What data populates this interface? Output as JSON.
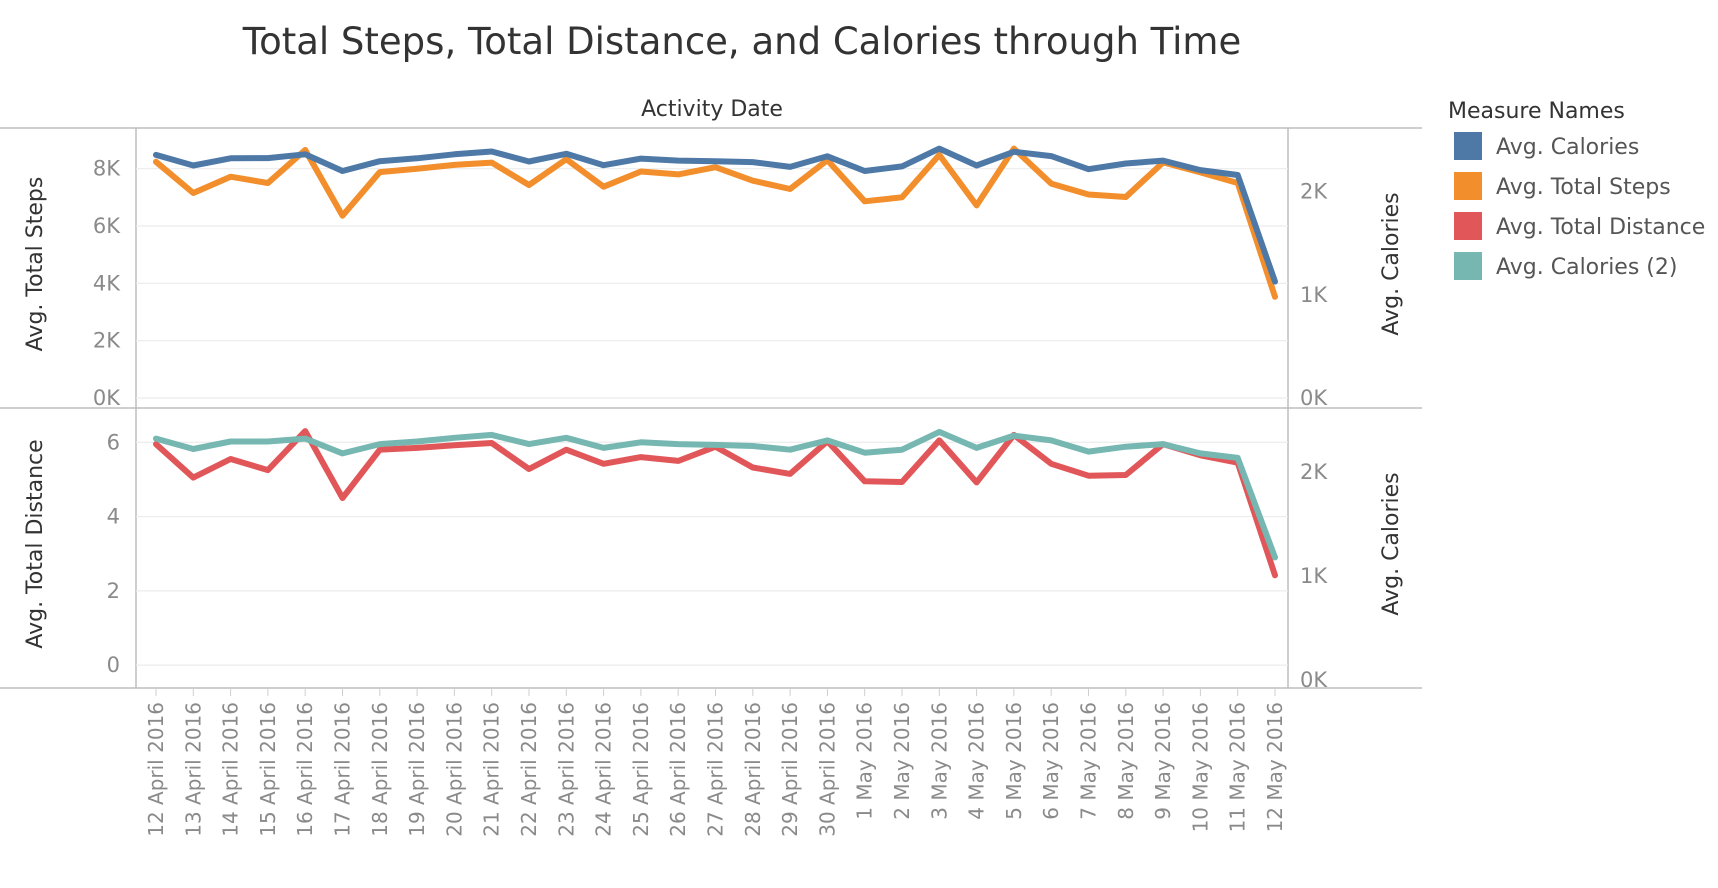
{
  "chart_data": {
    "type": "line",
    "title": "Total Steps, Total Distance, and Calories through Time",
    "column_header": "Activity Date",
    "categories": [
      "12 April 2016",
      "13 April 2016",
      "14 April 2016",
      "15 April 2016",
      "16 April 2016",
      "17 April 2016",
      "18 April 2016",
      "19 April 2016",
      "20 April 2016",
      "21 April 2016",
      "22 April 2016",
      "23 April 2016",
      "24 April 2016",
      "25 April 2016",
      "26 April 2016",
      "27 April 2016",
      "28 April 2016",
      "29 April 2016",
      "30 April 2016",
      "1 May 2016",
      "2 May 2016",
      "3 May 2016",
      "4 May 2016",
      "5 May 2016",
      "6 May 2016",
      "7 May 2016",
      "8 May 2016",
      "9 May 2016",
      "10 May 2016",
      "11 May 2016",
      "12 May 2016"
    ],
    "legend": {
      "title": "Measure Names",
      "position": "right",
      "items": [
        {
          "label": "Avg. Calories",
          "color": "#4e79a7"
        },
        {
          "label": "Avg. Total Steps",
          "color": "#f28e2b"
        },
        {
          "label": "Avg. Total Distance",
          "color": "#e15759"
        },
        {
          "label": "Avg. Calories (2)",
          "color": "#76b7b2"
        }
      ]
    },
    "panels": [
      {
        "left_axis": {
          "label": "Avg. Total Steps",
          "ylim": [
            0,
            9000
          ],
          "ticks": [
            0,
            2000,
            4000,
            6000,
            8000
          ],
          "tick_labels": [
            "0K",
            "2K",
            "4K",
            "6K",
            "8K"
          ]
        },
        "right_axis": {
          "label": "Avg. Calories",
          "ylim": [
            0,
            2500
          ],
          "ticks": [
            0,
            1000,
            2000
          ],
          "tick_labels": [
            "0K",
            "1K",
            "2K"
          ]
        },
        "series": [
          {
            "name": "Avg. Total Steps",
            "axis": "left",
            "color": "#f28e2b",
            "values": [
              8240,
              7150,
              7720,
              7500,
              8650,
              6360,
              7880,
              8000,
              8130,
              8210,
              7430,
              8330,
              7370,
              7900,
              7800,
              8050,
              7580,
              7290,
              8300,
              6860,
              7000,
              8480,
              6720,
              8700,
              7480,
              7100,
              7010,
              8220,
              7870,
              7500,
              3530
            ]
          },
          {
            "name": "Avg. Calories",
            "axis": "left",
            "color": "#4e79a7",
            "values": [
              8480,
              8110,
              8360,
              8370,
              8500,
              7920,
              8260,
              8360,
              8500,
              8600,
              8250,
              8520,
              8120,
              8350,
              8280,
              8260,
              8230,
              8060,
              8430,
              7920,
              8080,
              8700,
              8110,
              8590,
              8440,
              7980,
              8180,
              8280,
              7950,
              7780,
              4060
            ]
          }
        ]
      },
      {
        "left_axis": {
          "label": "Avg. Total Distance",
          "ylim": [
            -0.4,
            6.6
          ],
          "ticks": [
            0,
            2,
            4,
            6
          ],
          "tick_labels": [
            "0",
            "2",
            "4",
            "6"
          ]
        },
        "right_axis": {
          "label": "Avg. Calories",
          "ylim": [
            0,
            2500
          ],
          "ticks": [
            0,
            1000,
            2000
          ],
          "tick_labels": [
            "0K",
            "1K",
            "2K"
          ]
        },
        "series": [
          {
            "name": "Avg. Total Distance",
            "axis": "left",
            "color": "#e15759",
            "values": [
              5.95,
              5.05,
              5.55,
              5.25,
              6.3,
              4.5,
              5.8,
              5.85,
              5.92,
              5.98,
              5.28,
              5.8,
              5.42,
              5.6,
              5.5,
              5.88,
              5.32,
              5.15,
              6.03,
              4.95,
              4.93,
              6.05,
              4.92,
              6.2,
              5.42,
              5.1,
              5.12,
              5.95,
              5.65,
              5.45,
              2.42
            ]
          },
          {
            "name": "Avg. Calories (2)",
            "axis": "left",
            "color": "#76b7b2",
            "values": [
              6.1,
              5.82,
              6.02,
              6.02,
              6.1,
              5.7,
              5.95,
              6.02,
              6.12,
              6.2,
              5.95,
              6.12,
              5.85,
              6.0,
              5.95,
              5.93,
              5.9,
              5.8,
              6.05,
              5.72,
              5.8,
              6.28,
              5.85,
              6.18,
              6.05,
              5.75,
              5.88,
              5.95,
              5.7,
              5.58,
              2.9
            ]
          }
        ]
      }
    ]
  }
}
